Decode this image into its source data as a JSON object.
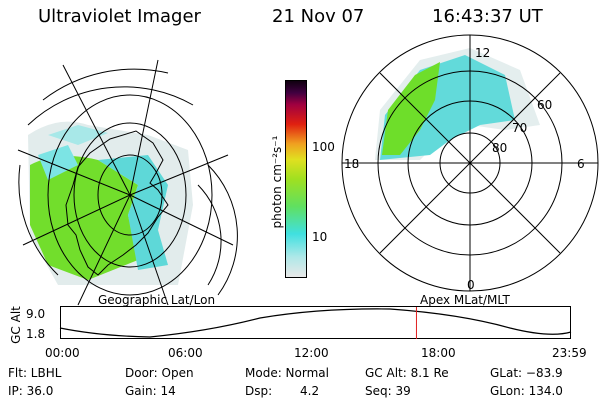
{
  "header": {
    "instrument": "Ultraviolet Imager",
    "date": "21 Nov 07",
    "time": "16:43:37 UT"
  },
  "colorbar": {
    "unit_label": "photon cm⁻²s⁻¹",
    "ticks": [
      "100",
      "10"
    ],
    "colors": [
      "#e8e8e8",
      "#b0e8e8",
      "#40e0e0",
      "#60e060",
      "#a0e020",
      "#e0e020",
      "#f0a020",
      "#e02010",
      "#a00040",
      "#400040",
      "#100010"
    ]
  },
  "left_map": {
    "label": "Geographic Lat/Lon"
  },
  "right_map": {
    "label": "Apex MLat/MLT",
    "mlt_labels": {
      "top": "12",
      "left": "18",
      "right": "6",
      "bottom": "0"
    },
    "lat_labels": [
      "60",
      "70",
      "80"
    ]
  },
  "altitude_plot": {
    "ylabel": "GC Alt",
    "yticks": [
      "9.0",
      "1.8"
    ],
    "xticks": [
      "00:00",
      "06:00",
      "12:00",
      "18:00",
      "23:59"
    ],
    "current_marker_hours": 16.73,
    "marker_color": "#e02020"
  },
  "info": {
    "flt": "Flt: LBHL",
    "ip": "IP: 36.0",
    "door": "Door: Open",
    "gain": "Gain: 14",
    "mode": "Mode: Normal",
    "dsp_label": "Dsp:",
    "dsp_value": "4.2",
    "gc_alt": "GC Alt: 8.1 Re",
    "seq": "Seq: 39",
    "glat": "GLat: −83.9",
    "glon": "GLon: 134.0"
  }
}
